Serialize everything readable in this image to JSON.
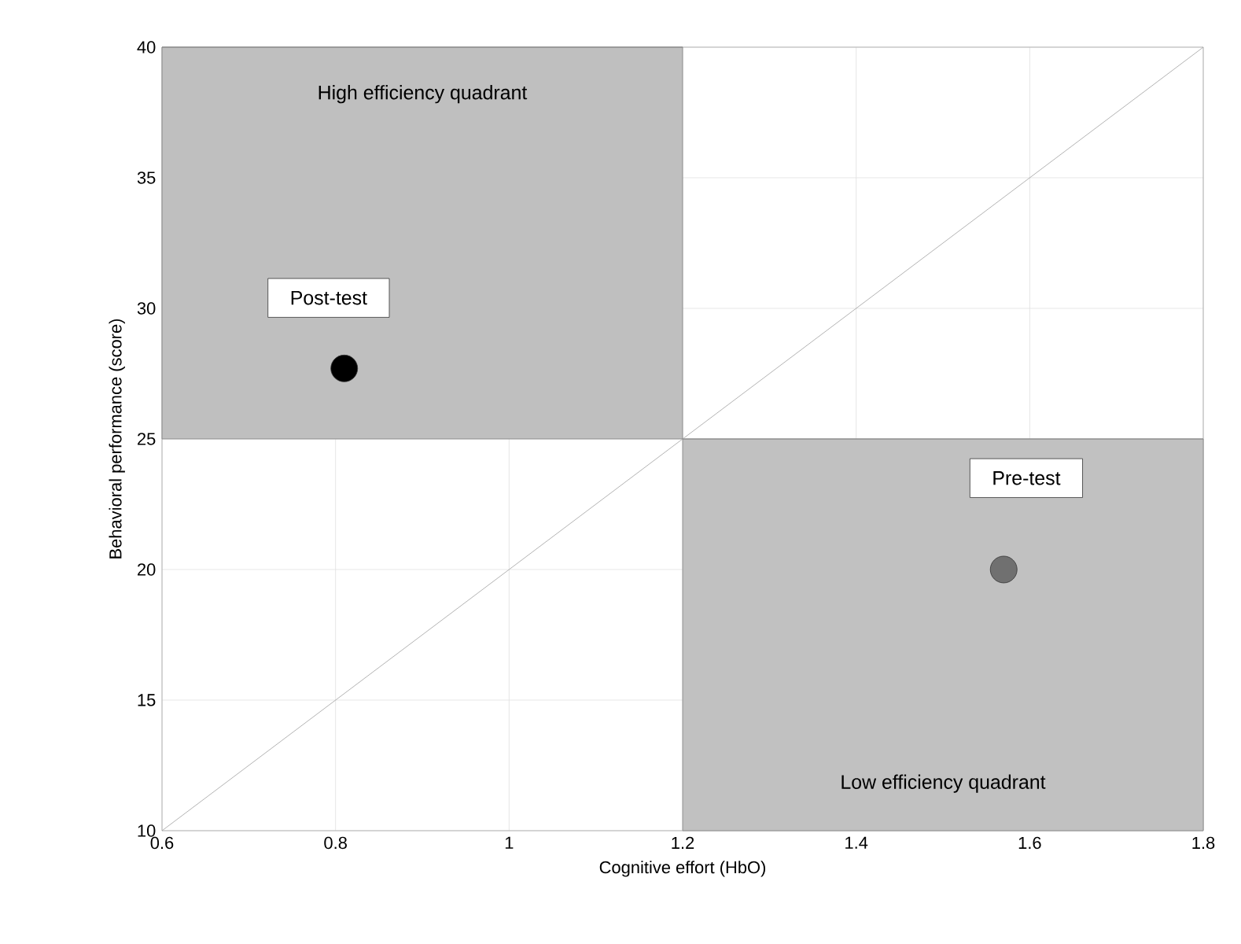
{
  "chart_data": {
    "type": "scatter",
    "xlabel": "Cognitive effort (HbO)",
    "ylabel": "Behavioral performance (score)",
    "xlim": [
      0.6,
      1.8
    ],
    "xticks": [
      0.6,
      0.8,
      1,
      1.2,
      1.4,
      1.6,
      1.8
    ],
    "ylim": [
      10,
      40
    ],
    "yticks": [
      10,
      15,
      20,
      25,
      30,
      35,
      40
    ],
    "grid": true,
    "marker": "circle",
    "series": [
      {
        "type": "line",
        "marker": "none",
        "color": "#808080",
        "x": [
          0.6,
          1.2
        ],
        "values": [
          40,
          40
        ],
        "lower": [
          25,
          25
        ],
        "upper": [
          40,
          40
        ]
      },
      {
        "type": "line",
        "marker": "none",
        "color": "#848484",
        "x": [
          1.2,
          1.8
        ],
        "values": [
          25,
          25
        ],
        "lower": [
          10,
          10
        ],
        "upper": [
          25,
          25
        ]
      },
      {
        "type": "line",
        "color": "#a0a0a0",
        "marker": "none",
        "x": [
          0.6,
          1.8
        ],
        "values": [
          10,
          40
        ]
      },
      {
        "color": "#000000",
        "x": [
          0.81
        ],
        "values": [
          27.7
        ]
      },
      {
        "color": "#707070",
        "x": [
          1.57
        ],
        "values": [
          20
        ]
      }
    ],
    "annotations": [
      "High efficiency quadrant",
      "Low efficiency quadrant",
      "Post-test",
      "Pre-test"
    ]
  }
}
